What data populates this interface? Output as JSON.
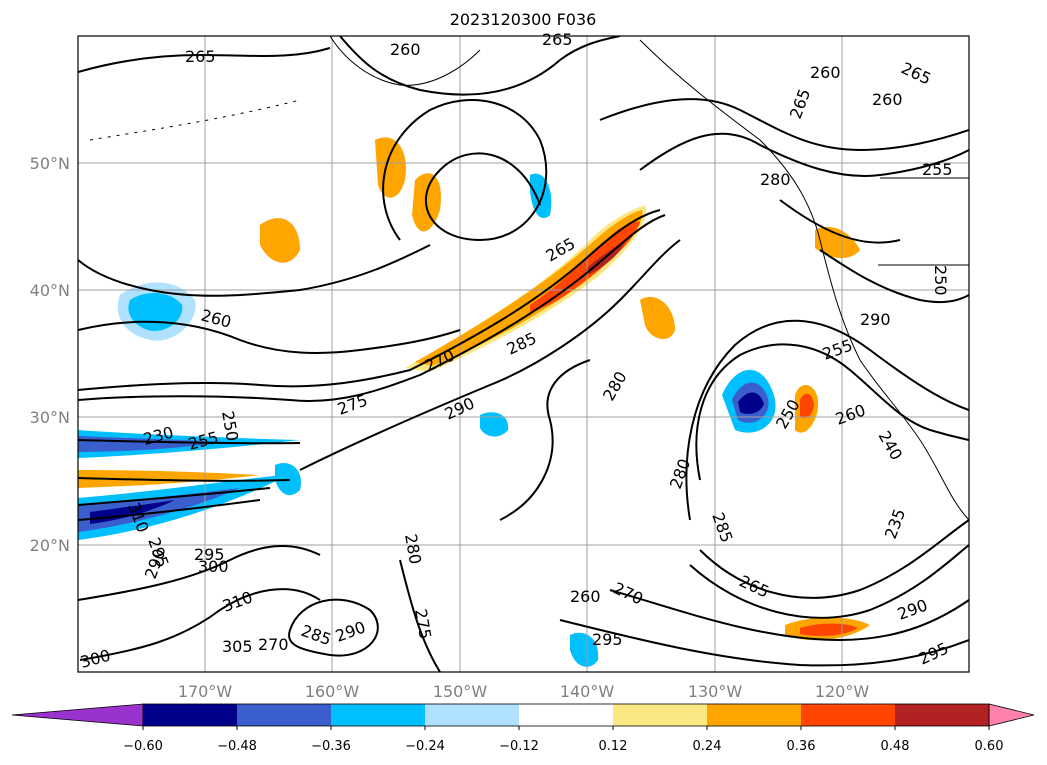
{
  "title": "2023120300 F036",
  "map": {
    "projection": "plate-carree",
    "lon_range": [
      -180,
      -110
    ],
    "lat_range": [
      10,
      60
    ],
    "gridlines": true,
    "lon_ticks": [
      "170°W",
      "160°W",
      "150°W",
      "140°W",
      "130°W",
      "120°W"
    ],
    "lat_ticks": [
      "50°N",
      "40°N",
      "30°N",
      "20°N"
    ],
    "contour_labels": [
      "265",
      "260",
      "265",
      "260",
      "265",
      "260",
      "255",
      "280",
      "265",
      "260",
      "265",
      "270",
      "285",
      "275",
      "290",
      "280",
      "290",
      "255",
      "250",
      "260",
      "240",
      "235",
      "230",
      "250",
      "255",
      "260",
      "265",
      "270",
      "275",
      "280",
      "285",
      "290",
      "295",
      "290",
      "295",
      "300",
      "295",
      "300",
      "310",
      "270",
      "305",
      "310",
      "295",
      "290",
      "280",
      "285",
      "250"
    ]
  },
  "colorbar": {
    "ticks": [
      "−0.60",
      "−0.48",
      "−0.36",
      "−0.24",
      "−0.12",
      "0.12",
      "0.24",
      "0.36",
      "0.48",
      "0.60"
    ],
    "colors": [
      "#9a32cd",
      "#00008b",
      "#3a5fcd",
      "#00bfff",
      "#b0e2ff",
      "#ffffff",
      "#fce883",
      "#ffa500",
      "#ff4500",
      "#b22222",
      "#ff82ab"
    ],
    "extend": "both"
  }
}
